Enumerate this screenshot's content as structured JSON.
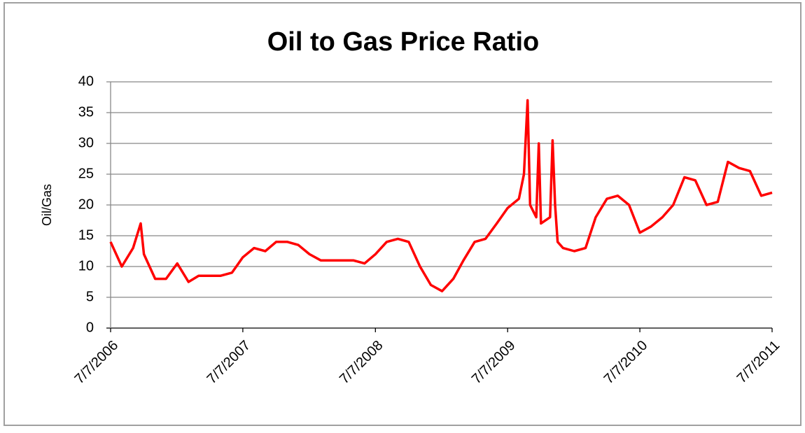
{
  "chart_data": {
    "type": "line",
    "title": "Oil to Gas Price Ratio",
    "y_label": "Oil/Gas",
    "x": [
      "7/7/2006",
      "8/7/2006",
      "9/7/2006",
      "9/28/2006",
      "10/7/2006",
      "11/7/2006",
      "12/7/2006",
      "1/7/2007",
      "2/7/2007",
      "3/7/2007",
      "4/7/2007",
      "5/7/2007",
      "6/7/2007",
      "7/7/2007",
      "8/7/2007",
      "9/7/2007",
      "10/7/2007",
      "11/7/2007",
      "12/7/2007",
      "1/7/2008",
      "2/7/2008",
      "3/7/2008",
      "4/7/2008",
      "5/7/2008",
      "6/7/2008",
      "7/7/2008",
      "8/7/2008",
      "9/7/2008",
      "10/7/2008",
      "11/7/2008",
      "12/7/2008",
      "1/7/2009",
      "2/7/2009",
      "3/7/2009",
      "4/7/2009",
      "5/7/2009",
      "6/7/2009",
      "7/7/2009",
      "8/7/2009",
      "8/21/2009",
      "8/31/2009",
      "9/7/2009",
      "9/24/2009",
      "10/1/2009",
      "10/7/2009",
      "11/1/2009",
      "11/8/2009",
      "11/15/2009",
      "11/22/2009",
      "12/7/2009",
      "1/7/2010",
      "2/7/2010",
      "3/7/2010",
      "4/7/2010",
      "5/7/2010",
      "6/7/2010",
      "7/7/2010",
      "8/7/2010",
      "9/7/2010",
      "10/7/2010",
      "11/7/2010",
      "12/7/2010",
      "1/7/2011",
      "2/7/2011",
      "3/7/2011",
      "4/7/2011",
      "5/7/2011",
      "6/7/2011",
      "7/7/2011"
    ],
    "series": [
      {
        "name": "Oil/Gas",
        "color": "#ff0000",
        "values": [
          14,
          10,
          13,
          17,
          12,
          8,
          8,
          10.5,
          7.5,
          8.5,
          8.5,
          8.5,
          9,
          11.5,
          13,
          12.5,
          14,
          14,
          13.5,
          12,
          11,
          11,
          11,
          11,
          10.5,
          12,
          14,
          14.5,
          14,
          10,
          7,
          6,
          8,
          11,
          14,
          14.5,
          17,
          19.5,
          21,
          25,
          37,
          20,
          18,
          30,
          17,
          18,
          30.5,
          20,
          14,
          13,
          12.5,
          13,
          18,
          21,
          21.5,
          20,
          15.5,
          16.5,
          18,
          20,
          24.5,
          24,
          20,
          20.5,
          27,
          26,
          25.5,
          21.5,
          22
        ]
      }
    ],
    "xlim": [
      "7/7/2006",
      "7/7/2011"
    ],
    "xticks": [
      "7/7/2006",
      "7/7/2007",
      "7/7/2008",
      "7/7/2009",
      "7/7/2010",
      "7/7/2011"
    ],
    "ylim": [
      0,
      40
    ],
    "yticks": [
      0,
      5,
      10,
      15,
      20,
      25,
      30,
      35,
      40
    ],
    "grid": true
  }
}
